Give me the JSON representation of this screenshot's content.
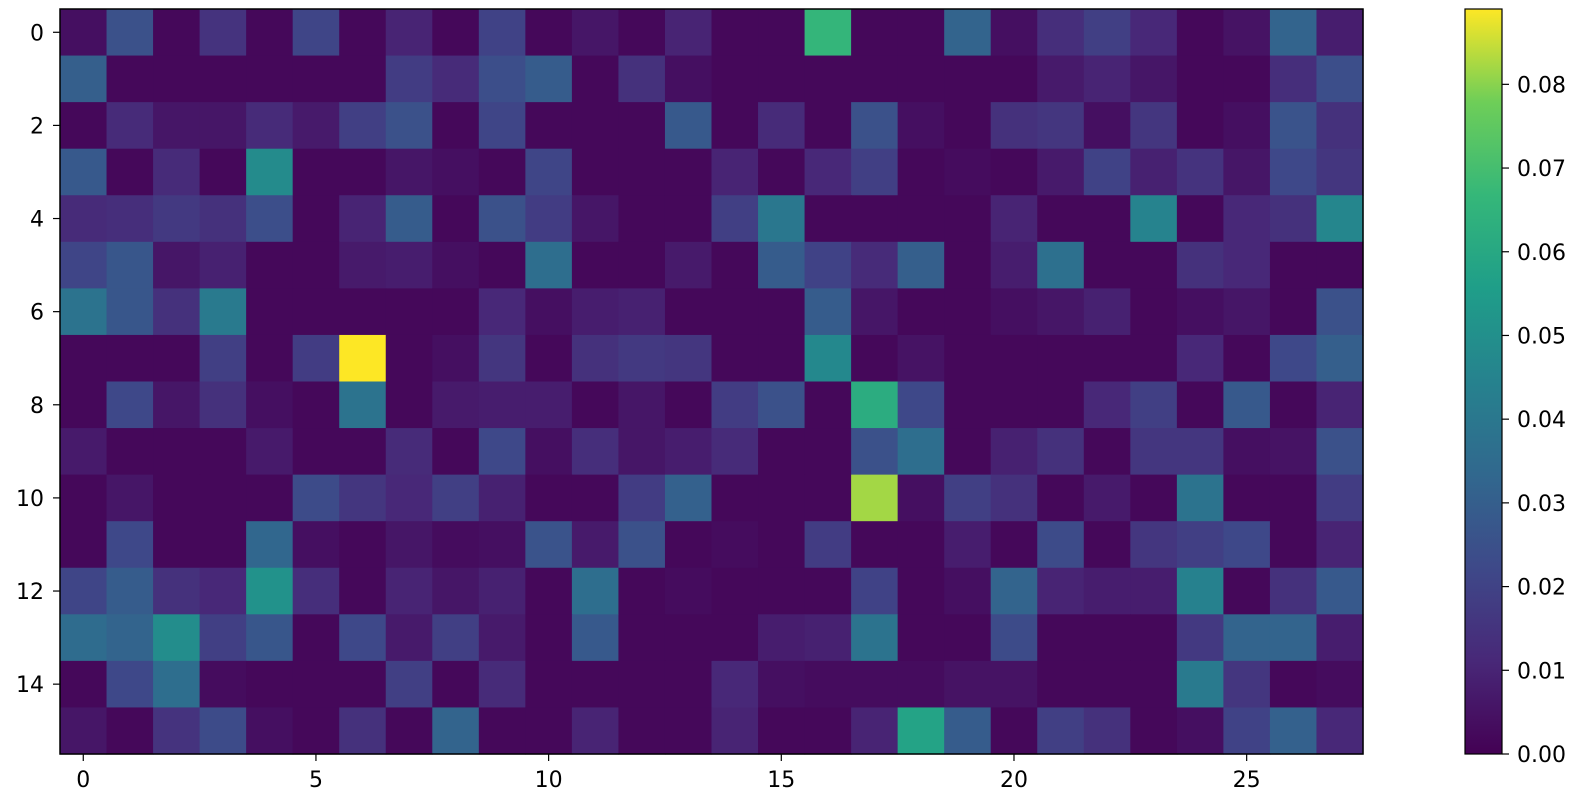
{
  "chart_data": {
    "type": "heatmap",
    "title": "",
    "xlabel": "",
    "ylabel": "",
    "rows": 16,
    "cols": 28,
    "x_ticks": [
      0,
      5,
      10,
      15,
      20,
      25
    ],
    "y_ticks": [
      0,
      2,
      4,
      6,
      8,
      10,
      12,
      14
    ],
    "colorbar": {
      "colormap": "viridis",
      "vmin": 0.0,
      "vmax": 0.089,
      "ticks": [
        0.0,
        0.01,
        0.02,
        0.03,
        0.04,
        0.05,
        0.06,
        0.07,
        0.08
      ],
      "tick_labels": [
        "0.00",
        "0.01",
        "0.02",
        "0.03",
        "0.04",
        "0.05",
        "0.06",
        "0.07",
        "0.08"
      ]
    },
    "values": [
      [
        0.004,
        0.025,
        0.002,
        0.015,
        0.002,
        0.021,
        0.002,
        0.01,
        0.002,
        0.02,
        0.002,
        0.006,
        0.002,
        0.01,
        0.002,
        0.002,
        0.066,
        0.002,
        0.002,
        0.032,
        0.004,
        0.013,
        0.019,
        0.011,
        0.002,
        0.005,
        0.032,
        0.008
      ],
      [
        0.03,
        0.002,
        0.002,
        0.002,
        0.002,
        0.002,
        0.002,
        0.018,
        0.012,
        0.024,
        0.029,
        0.002,
        0.014,
        0.004,
        0.002,
        0.002,
        0.002,
        0.002,
        0.002,
        0.002,
        0.002,
        0.007,
        0.01,
        0.006,
        0.002,
        0.002,
        0.013,
        0.024
      ],
      [
        0.002,
        0.012,
        0.006,
        0.006,
        0.012,
        0.007,
        0.019,
        0.025,
        0.002,
        0.021,
        0.002,
        0.002,
        0.002,
        0.028,
        0.002,
        0.012,
        0.002,
        0.025,
        0.004,
        0.002,
        0.014,
        0.016,
        0.004,
        0.016,
        0.002,
        0.004,
        0.026,
        0.014
      ],
      [
        0.028,
        0.002,
        0.012,
        0.002,
        0.048,
        0.002,
        0.002,
        0.006,
        0.004,
        0.002,
        0.021,
        0.002,
        0.002,
        0.002,
        0.01,
        0.002,
        0.011,
        0.019,
        0.002,
        0.003,
        0.002,
        0.007,
        0.02,
        0.009,
        0.015,
        0.006,
        0.022,
        0.016
      ],
      [
        0.012,
        0.013,
        0.017,
        0.014,
        0.024,
        0.002,
        0.01,
        0.029,
        0.002,
        0.025,
        0.018,
        0.006,
        0.002,
        0.002,
        0.019,
        0.04,
        0.002,
        0.002,
        0.002,
        0.002,
        0.01,
        0.002,
        0.002,
        0.045,
        0.002,
        0.011,
        0.014,
        0.046
      ],
      [
        0.021,
        0.027,
        0.006,
        0.009,
        0.002,
        0.002,
        0.007,
        0.008,
        0.004,
        0.002,
        0.036,
        0.002,
        0.002,
        0.007,
        0.002,
        0.029,
        0.02,
        0.012,
        0.03,
        0.002,
        0.008,
        0.037,
        0.002,
        0.002,
        0.014,
        0.011,
        0.002,
        0.002
      ],
      [
        0.038,
        0.027,
        0.014,
        0.041,
        0.002,
        0.002,
        0.002,
        0.002,
        0.002,
        0.011,
        0.004,
        0.008,
        0.009,
        0.002,
        0.002,
        0.002,
        0.029,
        0.006,
        0.002,
        0.002,
        0.004,
        0.006,
        0.009,
        0.002,
        0.004,
        0.006,
        0.002,
        0.025
      ],
      [
        0.002,
        0.002,
        0.002,
        0.019,
        0.002,
        0.018,
        0.089,
        0.002,
        0.004,
        0.016,
        0.002,
        0.014,
        0.017,
        0.016,
        0.002,
        0.002,
        0.047,
        0.002,
        0.005,
        0.002,
        0.002,
        0.002,
        0.002,
        0.002,
        0.011,
        0.002,
        0.022,
        0.03
      ],
      [
        0.002,
        0.022,
        0.006,
        0.014,
        0.004,
        0.002,
        0.038,
        0.002,
        0.007,
        0.008,
        0.008,
        0.002,
        0.006,
        0.002,
        0.018,
        0.025,
        0.002,
        0.062,
        0.022,
        0.002,
        0.002,
        0.002,
        0.011,
        0.019,
        0.002,
        0.028,
        0.002,
        0.01
      ],
      [
        0.007,
        0.002,
        0.002,
        0.002,
        0.007,
        0.002,
        0.002,
        0.012,
        0.002,
        0.022,
        0.004,
        0.013,
        0.006,
        0.008,
        0.012,
        0.002,
        0.002,
        0.025,
        0.036,
        0.002,
        0.009,
        0.014,
        0.002,
        0.016,
        0.016,
        0.004,
        0.005,
        0.025
      ],
      [
        0.002,
        0.006,
        0.002,
        0.002,
        0.002,
        0.023,
        0.016,
        0.011,
        0.019,
        0.009,
        0.002,
        0.002,
        0.018,
        0.031,
        0.002,
        0.002,
        0.002,
        0.082,
        0.004,
        0.019,
        0.014,
        0.002,
        0.007,
        0.002,
        0.038,
        0.002,
        0.002,
        0.018
      ],
      [
        0.002,
        0.022,
        0.002,
        0.002,
        0.033,
        0.004,
        0.002,
        0.006,
        0.003,
        0.004,
        0.026,
        0.007,
        0.025,
        0.002,
        0.003,
        0.002,
        0.018,
        0.002,
        0.002,
        0.008,
        0.002,
        0.023,
        0.002,
        0.016,
        0.019,
        0.022,
        0.002,
        0.01
      ],
      [
        0.021,
        0.029,
        0.014,
        0.011,
        0.051,
        0.013,
        0.002,
        0.01,
        0.006,
        0.009,
        0.002,
        0.036,
        0.002,
        0.003,
        0.002,
        0.002,
        0.002,
        0.02,
        0.002,
        0.004,
        0.032,
        0.01,
        0.008,
        0.008,
        0.044,
        0.002,
        0.014,
        0.028
      ],
      [
        0.035,
        0.032,
        0.049,
        0.019,
        0.027,
        0.002,
        0.022,
        0.007,
        0.019,
        0.007,
        0.002,
        0.028,
        0.002,
        0.002,
        0.002,
        0.008,
        0.009,
        0.038,
        0.002,
        0.002,
        0.023,
        0.002,
        0.002,
        0.002,
        0.017,
        0.032,
        0.032,
        0.008
      ],
      [
        0.002,
        0.022,
        0.036,
        0.003,
        0.002,
        0.002,
        0.002,
        0.019,
        0.002,
        0.012,
        0.002,
        0.002,
        0.002,
        0.002,
        0.011,
        0.004,
        0.003,
        0.003,
        0.003,
        0.005,
        0.005,
        0.002,
        0.002,
        0.002,
        0.041,
        0.016,
        0.002,
        0.003
      ],
      [
        0.006,
        0.002,
        0.015,
        0.023,
        0.004,
        0.002,
        0.014,
        0.002,
        0.032,
        0.002,
        0.002,
        0.01,
        0.002,
        0.002,
        0.01,
        0.002,
        0.002,
        0.01,
        0.058,
        0.029,
        0.002,
        0.019,
        0.014,
        0.002,
        0.004,
        0.02,
        0.031,
        0.011
      ]
    ]
  }
}
